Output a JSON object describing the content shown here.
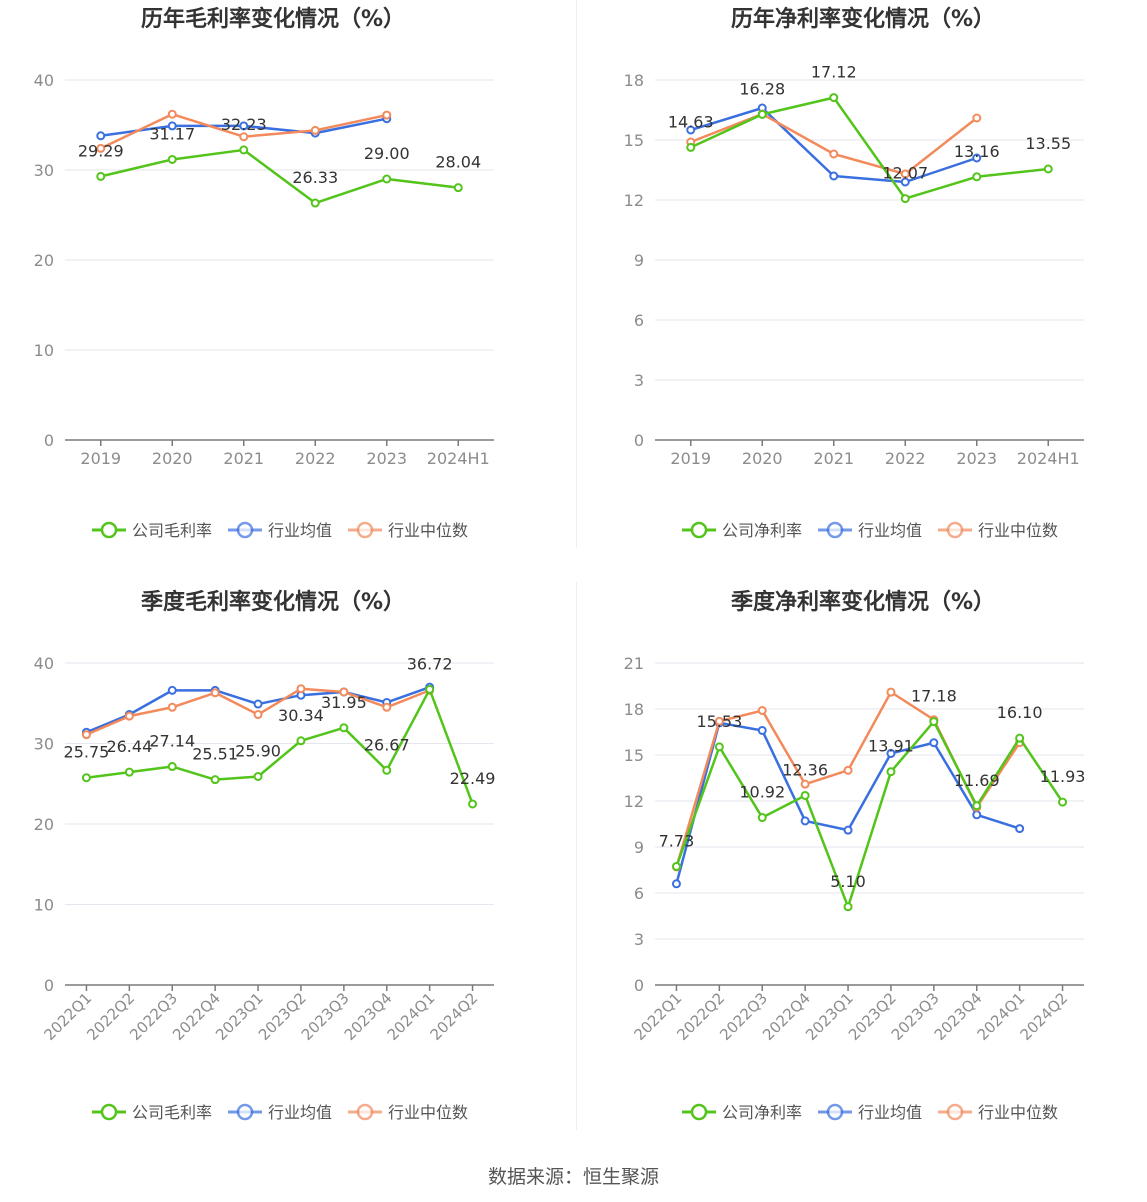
{
  "colors": {
    "company": "#52c41a",
    "avg": "#3a6fe0",
    "median": "#f28a5c",
    "grid": "#e6e6ee",
    "axis": "#8c8c8c",
    "label": "#333333"
  },
  "source_text": "数据来源：恒生聚源",
  "chart_data": [
    {
      "type": "line",
      "title": "历年毛利率变化情况（%）",
      "categories": [
        "2019",
        "2020",
        "2021",
        "2022",
        "2023",
        "2024H1"
      ],
      "ylim": [
        0,
        40
      ],
      "yticks": [
        0,
        10,
        20,
        30,
        40
      ],
      "legend_position": "bottom",
      "series": [
        {
          "name": "公司毛利率",
          "role": "company",
          "values": [
            29.29,
            31.17,
            32.23,
            26.33,
            29.0,
            28.04
          ],
          "labels": [
            "29.29",
            "31.17",
            "32.23",
            "26.33",
            "29.00",
            "28.04"
          ]
        },
        {
          "name": "行业均值",
          "role": "avg",
          "values": [
            33.8,
            34.9,
            34.9,
            34.1,
            35.7,
            null
          ]
        },
        {
          "name": "行业中位数",
          "role": "median",
          "values": [
            32.4,
            36.2,
            33.7,
            34.4,
            36.1,
            null
          ]
        }
      ]
    },
    {
      "type": "line",
      "title": "历年净利率变化情况（%）",
      "categories": [
        "2019",
        "2020",
        "2021",
        "2022",
        "2023",
        "2024H1"
      ],
      "ylim": [
        0,
        18
      ],
      "yticks": [
        0,
        3,
        6,
        9,
        12,
        15,
        18
      ],
      "legend_position": "bottom",
      "series": [
        {
          "name": "公司净利率",
          "role": "company",
          "values": [
            14.63,
            16.28,
            17.12,
            12.07,
            13.16,
            13.55
          ],
          "labels": [
            "14.63",
            "16.28",
            "17.12",
            "12.07",
            "13.16",
            "13.55"
          ]
        },
        {
          "name": "行业均值",
          "role": "avg",
          "values": [
            15.5,
            16.6,
            13.2,
            12.9,
            14.1,
            null
          ]
        },
        {
          "name": "行业中位数",
          "role": "median",
          "values": [
            14.9,
            16.3,
            14.3,
            13.3,
            16.1,
            null
          ]
        }
      ]
    },
    {
      "type": "line",
      "title": "季度毛利率变化情况（%）",
      "categories": [
        "2022Q1",
        "2022Q2",
        "2022Q3",
        "2022Q4",
        "2023Q1",
        "2023Q2",
        "2023Q3",
        "2023Q4",
        "2024Q1",
        "2024Q2"
      ],
      "ylim": [
        0,
        40
      ],
      "yticks": [
        0,
        10,
        20,
        30,
        40
      ],
      "legend_position": "bottom",
      "series": [
        {
          "name": "公司毛利率",
          "role": "company",
          "values": [
            25.75,
            26.44,
            27.14,
            25.51,
            25.9,
            30.34,
            31.95,
            26.67,
            36.72,
            22.49
          ],
          "labels": [
            "25.75",
            "26.44",
            "27.14",
            "25.51",
            "25.90",
            "30.34",
            "31.95",
            "26.67",
            "36.72",
            "22.49"
          ]
        },
        {
          "name": "行业均值",
          "role": "avg",
          "values": [
            31.4,
            33.6,
            36.6,
            36.6,
            34.9,
            36.0,
            36.4,
            35.1,
            37.0,
            null
          ]
        },
        {
          "name": "行业中位数",
          "role": "median",
          "values": [
            31.1,
            33.4,
            34.5,
            36.3,
            33.6,
            36.8,
            36.4,
            34.5,
            36.6,
            null
          ]
        }
      ]
    },
    {
      "type": "line",
      "title": "季度净利率变化情况（%）",
      "categories": [
        "2022Q1",
        "2022Q2",
        "2022Q3",
        "2022Q4",
        "2023Q1",
        "2023Q2",
        "2023Q3",
        "2023Q4",
        "2024Q1",
        "2024Q2"
      ],
      "ylim": [
        0,
        21
      ],
      "yticks": [
        0,
        3,
        6,
        9,
        12,
        15,
        18,
        21
      ],
      "legend_position": "bottom",
      "series": [
        {
          "name": "公司净利率",
          "role": "company",
          "values": [
            7.73,
            15.53,
            10.92,
            12.36,
            5.1,
            13.91,
            17.18,
            11.69,
            16.1,
            11.93
          ],
          "labels": [
            "7.73",
            "15.53",
            "10.92",
            "12.36",
            "5.10",
            "13.91",
            "17.18",
            "11.69",
            "16.10",
            "11.93"
          ]
        },
        {
          "name": "行业均值",
          "role": "avg",
          "values": [
            6.6,
            17.1,
            16.6,
            10.7,
            10.1,
            15.1,
            15.8,
            11.1,
            10.2,
            null
          ]
        },
        {
          "name": "行业中位数",
          "role": "median",
          "values": [
            7.7,
            17.2,
            17.9,
            13.1,
            14.0,
            19.1,
            17.3,
            11.6,
            15.8,
            null
          ]
        }
      ]
    }
  ]
}
